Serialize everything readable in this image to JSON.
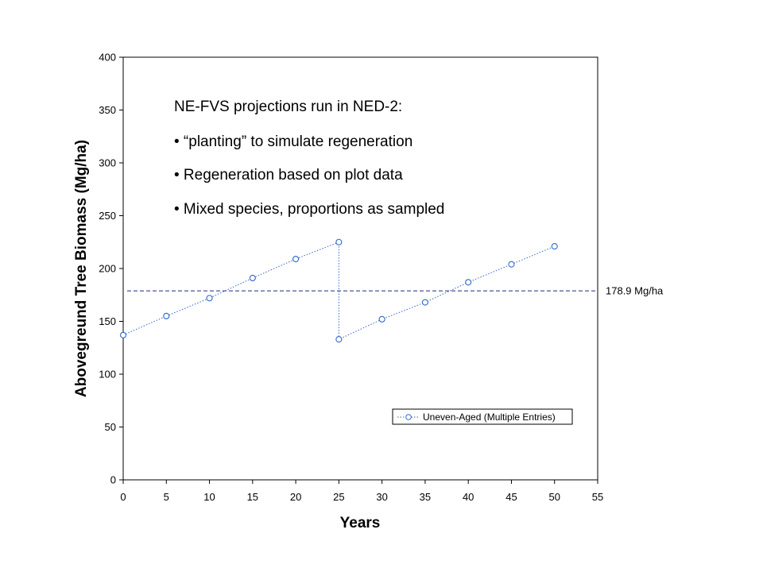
{
  "chart_data": {
    "type": "line",
    "xlabel": "Years",
    "ylabel": "Abovegreund Tree Biomass (Mg/ha)",
    "xlim": [
      0,
      55
    ],
    "ylim": [
      0,
      400
    ],
    "x_ticks": [
      "0",
      "5",
      "10",
      "15",
      "20",
      "25",
      "30",
      "35",
      "40",
      "45",
      "50",
      "55"
    ],
    "y_ticks": [
      "0",
      "50",
      "100",
      "150",
      "200",
      "250",
      "300",
      "350",
      "400"
    ],
    "series": [
      {
        "name": "Uneven-Aged (Multiple Entries)",
        "color": "#3366cc",
        "marker": "circle",
        "line_style": "dotted",
        "points": [
          [
            0,
            137
          ],
          [
            5,
            155
          ],
          [
            10,
            172
          ],
          [
            15,
            191
          ],
          [
            20,
            209
          ],
          [
            25,
            225
          ],
          [
            25,
            133
          ],
          [
            30,
            152
          ],
          [
            35,
            168
          ],
          [
            40,
            187
          ],
          [
            45,
            204
          ],
          [
            50,
            221
          ]
        ]
      }
    ],
    "reference_line": {
      "y": 178.9,
      "label": "178.9 Mg/ha",
      "color": "#1f2a7a",
      "style": "dashed"
    },
    "annotations": [
      "NE-FVS projections run in NED-2:",
      "• “planting” to simulate regeneration",
      "• Regeneration based on plot data",
      "• Mixed species, proportions as sampled"
    ],
    "legend_position": "bottom-right",
    "grid": false
  }
}
